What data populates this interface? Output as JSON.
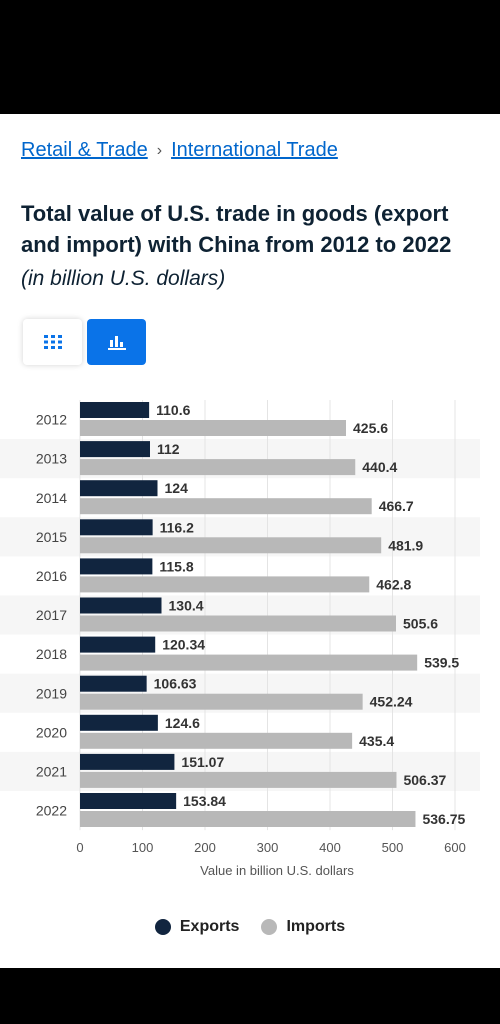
{
  "breadcrumb": {
    "items": [
      "Retail & Trade",
      "International Trade"
    ],
    "separator": "›"
  },
  "title": "Total value of U.S. trade in goods (export and import) with China from 2012 to 2022",
  "subtitle": "(in billion U.S. dollars)",
  "view_toggle": {
    "table_icon": "grid-icon",
    "chart_icon": "bar-chart-icon",
    "active": "chart"
  },
  "colors": {
    "exports": "#11253f",
    "imports": "#b8b8b8",
    "accent": "#0a73e8"
  },
  "chart_data": {
    "type": "bar",
    "orientation": "horizontal",
    "categories": [
      "2012",
      "2013",
      "2014",
      "2015",
      "2016",
      "2017",
      "2018",
      "2019",
      "2020",
      "2021",
      "2022"
    ],
    "series": [
      {
        "name": "Exports",
        "values": [
          110.6,
          112,
          124,
          116.2,
          115.8,
          130.4,
          120.34,
          106.63,
          124.6,
          151.07,
          153.84
        ]
      },
      {
        "name": "Imports",
        "values": [
          425.6,
          440.4,
          466.7,
          481.9,
          462.8,
          505.6,
          539.5,
          452.24,
          435.4,
          506.37,
          536.75
        ]
      }
    ],
    "value_labels": {
      "Exports": [
        "110.6",
        "112",
        "124",
        "116.2",
        "115.8",
        "130.4",
        "120.34",
        "106.63",
        "124.6",
        "151.07",
        "153.84"
      ],
      "Imports": [
        "425.6",
        "440.4",
        "466.7",
        "481.9",
        "462.8",
        "505.6",
        "539.5",
        "452.24",
        "435.4",
        "506.37",
        "536.75"
      ]
    },
    "xlabel": "Value in billion U.S. dollars",
    "xticks": [
      0,
      100,
      200,
      300,
      400,
      500,
      600
    ],
    "xlim": [
      0,
      600
    ],
    "grid": true,
    "legend_position": "bottom"
  }
}
